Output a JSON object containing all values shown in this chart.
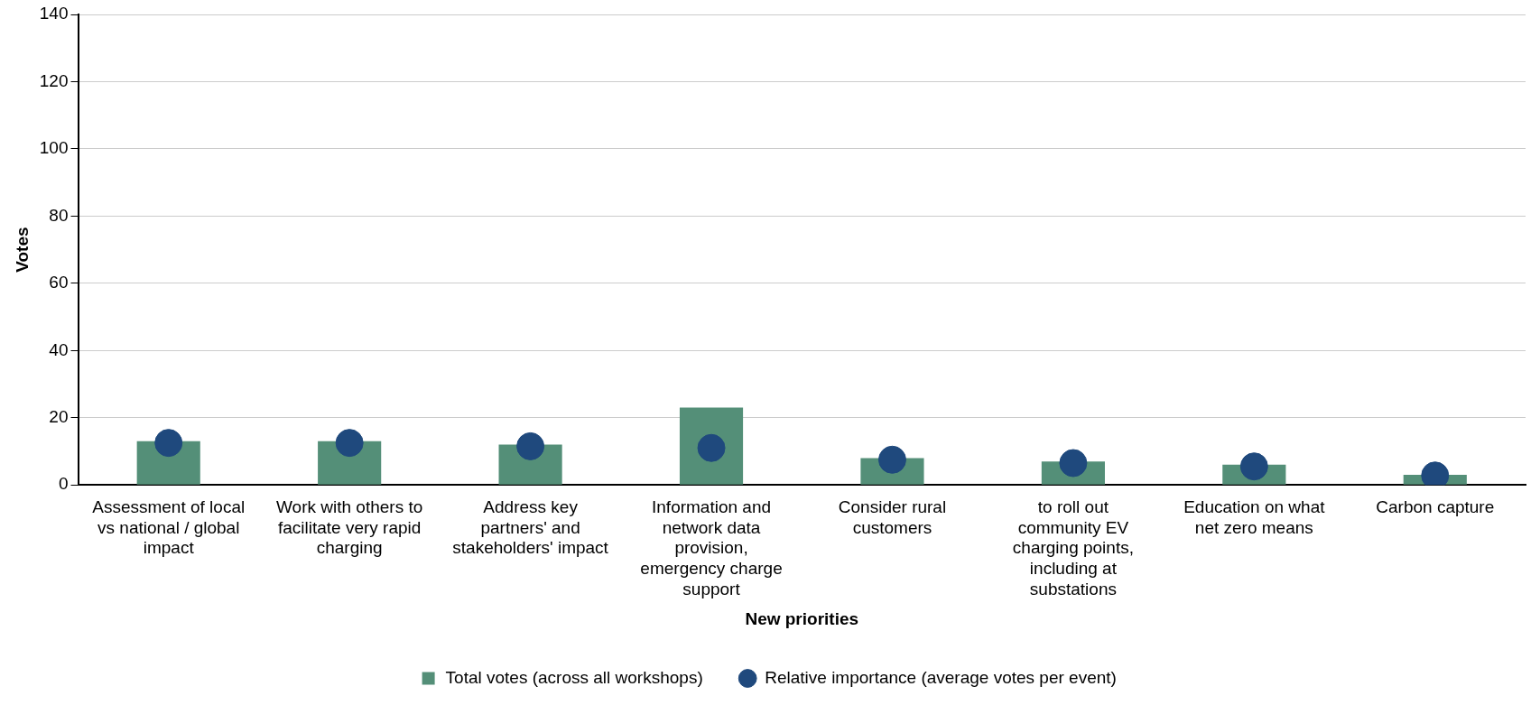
{
  "chart_data": {
    "type": "bar",
    "xlabel": "New priorities",
    "ylabel": "Votes",
    "categories": [
      "Assessment of local vs national / global impact",
      "Work with others to facilitate very rapid charging",
      "Address key partners' and stakeholders' impact",
      "Information and network data provision, emergency charge support",
      "Consider rural customers",
      "to roll out community EV charging points, including at substations",
      "Education on what net zero means",
      "Carbon capture"
    ],
    "series": [
      {
        "name": "Total votes (across all workshops)",
        "color": "#548f78",
        "values": [
          13,
          13,
          12,
          23,
          8,
          7,
          6,
          3
        ]
      },
      {
        "name": "Relative importance (average votes per event)",
        "type": "scatter",
        "color": "#1f497d",
        "values": [
          12.5,
          12.5,
          11.5,
          11,
          7.5,
          6.5,
          5.5,
          2.8
        ]
      }
    ],
    "ylim": [
      0,
      140
    ],
    "yticks": [
      0,
      20,
      40,
      60,
      80,
      100,
      120,
      140
    ],
    "grid": "y",
    "legend": "bottom",
    "marker": "circle"
  }
}
